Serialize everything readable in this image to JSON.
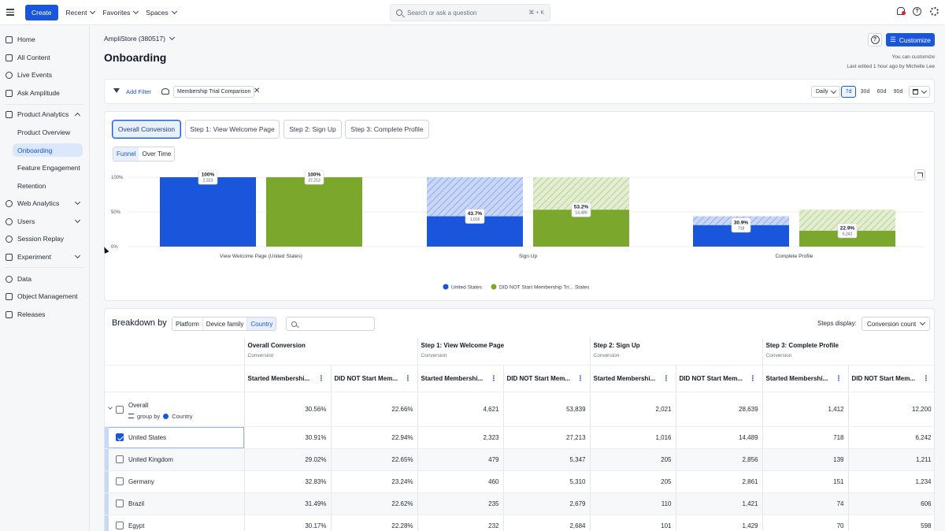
{
  "topbar": {
    "create": "Create",
    "recent": "Recent",
    "favorites": "Favorites",
    "spaces": "Spaces",
    "search_placeholder": "Search or ask a question",
    "search_shortcut": "⌘ + K"
  },
  "sidebar": {
    "home": "Home",
    "all_content": "All Content",
    "live_events": "Live Events",
    "ask_amplitude": "Ask Amplitude",
    "product_analytics": "Product Analytics",
    "product_overview": "Product Overview",
    "onboarding": "Onboarding",
    "feature_engagement": "Feature Engagement",
    "retention": "Retention",
    "web_analytics": "Web Analytics",
    "users": "Users",
    "session_replay": "Session Replay",
    "experiment": "Experiment",
    "data": "Data",
    "object_management": "Object Management",
    "releases": "Releases"
  },
  "header": {
    "org": "AmpliStore (380517)",
    "title": "Onboarding",
    "customize": "Customize",
    "can_customize": "You can customize",
    "last_edited": "Last edited 1 hour ago by Michelle Lee"
  },
  "filters": {
    "add_filter": "Add Filter",
    "segment": "Membership Trial Comparison",
    "interval": "Daily",
    "ranges": [
      "7d",
      "30d",
      "60d",
      "90d"
    ]
  },
  "chart_tabs": [
    "Overall Conversion",
    "Step 1: View Welcome Page",
    "Step 2: Sign Up",
    "Step 3: Complete Profile"
  ],
  "chart_view": {
    "funnel": "Funnel",
    "over_time": "Over Time"
  },
  "chart_data": {
    "type": "bar",
    "categories": [
      "View Welcome Page (United States)",
      "Sign Up",
      "Complete Profile"
    ],
    "y_ticks": [
      "100%",
      "50%",
      "0%"
    ],
    "ylim": [
      0,
      100
    ],
    "series": [
      {
        "name": "United States",
        "color": "#1a56db",
        "values": [
          100,
          43.7,
          30.9
        ],
        "value_labels": [
          "100%",
          "43.7%",
          "30.9%"
        ],
        "counts": [
          "2,323",
          "1,016",
          "718"
        ],
        "prev_values": [
          100,
          100,
          43.7
        ]
      },
      {
        "name": "DID NOT Start Membership Tri... States",
        "color": "#7ba82c",
        "values": [
          100,
          53.2,
          22.9
        ],
        "value_labels": [
          "100%",
          "53.2%",
          "22.9%"
        ],
        "counts": [
          "27,213",
          "14,489",
          "6,242"
        ],
        "prev_values": [
          100,
          100,
          53.2
        ]
      }
    ],
    "legend": "bottom-center"
  },
  "breakdown": {
    "title": "Breakdown by",
    "options": [
      "Platform",
      "Device family",
      "Country"
    ],
    "steps_display_label": "Steps display:",
    "steps_display_value": "Conversion count",
    "groups": [
      {
        "title": "Overall Conversion",
        "sub": "Conversion"
      },
      {
        "title": "Step 1: View Welcome Page",
        "sub": "Conversion"
      },
      {
        "title": "Step 2: Sign Up",
        "sub": "Conversion"
      },
      {
        "title": "Step 3: Complete Profile",
        "sub": "Conversion"
      }
    ],
    "col_started": "Started Membershi...",
    "col_not": "DID NOT Start Mem...",
    "overall": {
      "label": "Overall",
      "group_by": "group by",
      "country": "Country",
      "values": [
        "30.56%",
        "22.66%",
        "4,621",
        "53,839",
        "2,021",
        "28,639",
        "1,412",
        "12,200"
      ]
    },
    "rows": [
      {
        "country": "United States",
        "values": [
          "30.91%",
          "22.94%",
          "2,323",
          "27,213",
          "1,016",
          "14,489",
          "718",
          "6,242"
        ]
      },
      {
        "country": "United Kingdom",
        "values": [
          "29.02%",
          "22.65%",
          "479",
          "5,347",
          "205",
          "2,856",
          "139",
          "1,211"
        ]
      },
      {
        "country": "Germany",
        "values": [
          "32.83%",
          "23.24%",
          "460",
          "5,310",
          "205",
          "2,861",
          "151",
          "1,234"
        ]
      },
      {
        "country": "Brazil",
        "values": [
          "31.49%",
          "22.62%",
          "235",
          "2,679",
          "110",
          "1,421",
          "74",
          "606"
        ]
      },
      {
        "country": "Egypt",
        "values": [
          "30.17%",
          "22.28%",
          "232",
          "2,684",
          "101",
          "1,429",
          "70",
          "598"
        ]
      }
    ]
  }
}
